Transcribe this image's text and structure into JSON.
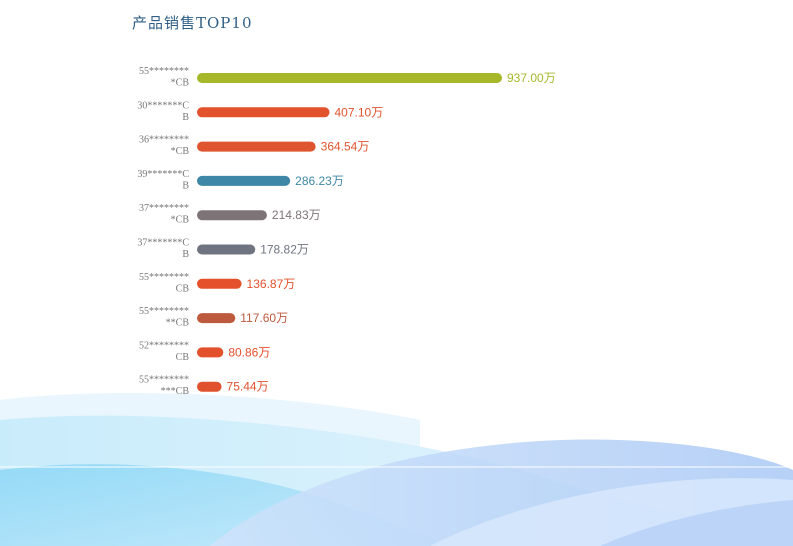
{
  "title": "产品销售TOP10",
  "chart_data": {
    "type": "bar",
    "orientation": "horizontal",
    "title": "产品销售TOP10",
    "unit": "万",
    "categories": [
      [
        "55********",
        "*CB"
      ],
      [
        "30*******C",
        "B"
      ],
      [
        "36********",
        "*CB"
      ],
      [
        "39*******C",
        "B"
      ],
      [
        "37********",
        "*CB"
      ],
      [
        "37*******C",
        "B"
      ],
      [
        "55********",
        "CB"
      ],
      [
        "55********",
        "**CB"
      ],
      [
        "52********",
        "CB"
      ],
      [
        "55********",
        "***CB"
      ]
    ],
    "values": [
      937.0,
      407.1,
      364.54,
      286.23,
      214.83,
      178.82,
      136.87,
      117.6,
      80.86,
      75.44
    ],
    "value_labels": [
      "937.00万",
      "407.10万",
      "364.54万",
      "286.23万",
      "214.83万",
      "178.82万",
      "136.87万",
      "117.60万",
      "80.86万",
      "75.44万"
    ],
    "colors": [
      "#a6b82a",
      "#e2522c",
      "#de5530",
      "#3f87a6",
      "#7d7478",
      "#6f7480",
      "#e4512a",
      "#bd5a3e",
      "#e3502c",
      "#e0522e"
    ],
    "xlim": [
      0,
      937
    ],
    "grid": false,
    "legend": "none"
  }
}
